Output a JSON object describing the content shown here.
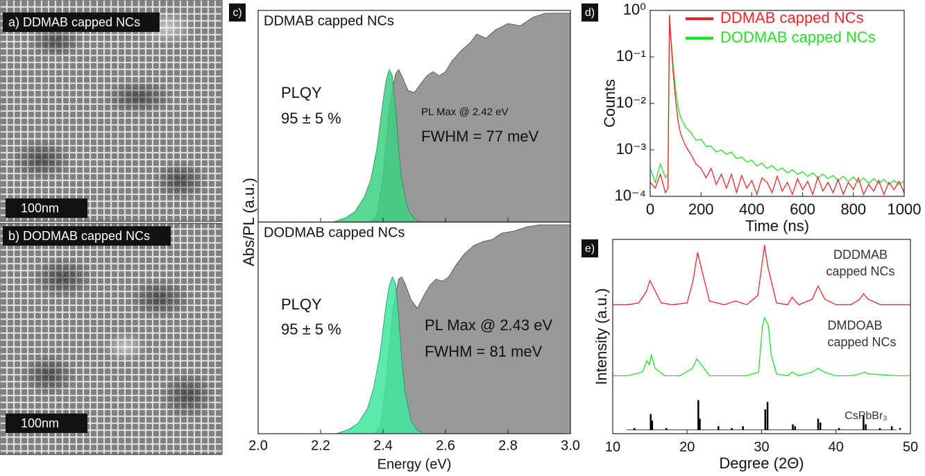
{
  "images": [
    {
      "caption": "a) DDMAB capped NCs",
      "scale_bar": "100nm"
    },
    {
      "caption": "b) DODMAB capped NCs",
      "scale_bar": "100nm"
    }
  ],
  "chart_data": [
    {
      "type": "area",
      "panel_label": "c)",
      "ylabel": "Abs/PL (a.u.)",
      "xlabel": "Energy (eV)",
      "xlim": [
        2.0,
        3.0
      ],
      "xticks": [
        {
          "value": 2,
          "label": "2.0"
        },
        2.2,
        2.4,
        2.6,
        2.8,
        {
          "value": 3,
          "label": "3.0"
        }
      ],
      "subplots": [
        {
          "title": "DDMAB capped NCs",
          "annotations": [
            "PLQY",
            "95 ± 5 %",
            "PL Max @ 2.42 eV",
            "FWHM = 77 meV"
          ],
          "ylim": [
            0,
            1
          ],
          "series": [
            {
              "color": "#999999",
              "x": [
                2.36,
                2.38,
                2.4,
                2.42,
                2.44,
                2.45,
                2.46,
                2.48,
                2.5,
                2.52,
                2.54,
                2.56,
                2.58,
                2.6,
                2.62,
                2.65,
                2.68,
                2.7,
                2.73,
                2.76,
                2.8,
                2.84,
                2.88,
                2.92,
                2.96,
                3.0
              ],
              "values": [
                0,
                0.03,
                0.22,
                0.55,
                0.71,
                0.73,
                0.7,
                0.63,
                0.62,
                0.66,
                0.7,
                0.72,
                0.7,
                0.72,
                0.77,
                0.82,
                0.86,
                0.9,
                0.88,
                0.92,
                0.95,
                0.94,
                0.98,
                1.0,
                1.0,
                1.0
              ]
            },
            {
              "color": "#3fcf80",
              "x": [
                2.24,
                2.28,
                2.31,
                2.34,
                2.36,
                2.38,
                2.4,
                2.41,
                2.42,
                2.43,
                2.44,
                2.45,
                2.46,
                2.48,
                2.5,
                2.52
              ],
              "values": [
                0,
                0.02,
                0.05,
                0.12,
                0.2,
                0.35,
                0.58,
                0.68,
                0.73,
                0.7,
                0.55,
                0.35,
                0.2,
                0.06,
                0.015,
                0
              ]
            }
          ]
        },
        {
          "title": "DODMAB capped NCs",
          "annotations": [
            "PLQY",
            "95 ± 5 %",
            "PL Max @ 2.43 eV",
            "FWHM = 81 meV"
          ],
          "ylim": [
            0,
            1
          ],
          "series": [
            {
              "color": "#999999",
              "x": [
                2.37,
                2.39,
                2.41,
                2.43,
                2.45,
                2.46,
                2.47,
                2.49,
                2.51,
                2.53,
                2.55,
                2.57,
                2.59,
                2.61,
                2.63,
                2.66,
                2.69,
                2.72,
                2.75,
                2.78,
                2.82,
                2.86,
                2.9,
                2.94,
                2.98,
                3.0
              ],
              "values": [
                0,
                0.03,
                0.25,
                0.58,
                0.74,
                0.75,
                0.72,
                0.64,
                0.6,
                0.66,
                0.71,
                0.74,
                0.73,
                0.75,
                0.8,
                0.86,
                0.9,
                0.92,
                0.93,
                0.96,
                0.97,
                0.99,
                1.0,
                1.0,
                1.0,
                1.0
              ]
            },
            {
              "color": "#40e8a0",
              "x": [
                2.25,
                2.29,
                2.32,
                2.35,
                2.37,
                2.39,
                2.41,
                2.42,
                2.43,
                2.44,
                2.45,
                2.46,
                2.47,
                2.49,
                2.51,
                2.53
              ],
              "values": [
                0,
                0.02,
                0.05,
                0.12,
                0.22,
                0.38,
                0.62,
                0.71,
                0.75,
                0.72,
                0.56,
                0.35,
                0.2,
                0.06,
                0.015,
                0
              ]
            }
          ]
        }
      ]
    },
    {
      "type": "line",
      "panel_label": "d)",
      "xlabel": "Time (ns)",
      "ylabel": "Counts",
      "log_y": true,
      "legend": "upper right",
      "xlim": [
        0,
        1000
      ],
      "xticks": [
        0,
        200,
        400,
        600,
        800,
        1000
      ],
      "ylim": [
        0.0001,
        1
      ],
      "yticks": [
        {
          "value": 1,
          "label": "10⁰"
        },
        {
          "value": 0.1,
          "label": "10⁻¹"
        },
        {
          "value": 0.01,
          "label": "10⁻²"
        },
        {
          "value": 0.001,
          "label": "10⁻³"
        },
        {
          "value": 0.0001,
          "label": "10⁻⁴"
        }
      ],
      "x": [
        0,
        20,
        40,
        60,
        70,
        76,
        80,
        90,
        100,
        110,
        120,
        140,
        160,
        180,
        200,
        220,
        240,
        260,
        280,
        300,
        320,
        340,
        360,
        380,
        400,
        420,
        440,
        460,
        480,
        500,
        520,
        540,
        560,
        580,
        600,
        620,
        640,
        660,
        680,
        700,
        720,
        740,
        760,
        780,
        800,
        820,
        840,
        860,
        880,
        900,
        920,
        940,
        960,
        980,
        1000
      ],
      "series": [
        {
          "name": "DDMAB capped NCs",
          "color": "#e8262c",
          "values": [
            0.0002,
            0.00015,
            0.0003,
            0.00012,
            0.00015,
            0.8,
            0.3,
            0.05,
            0.012,
            0.004,
            0.0022,
            0.0012,
            0.0008,
            0.0005,
            0.0004,
            0.00025,
            0.0004,
            0.00018,
            0.0003,
            0.00015,
            0.0003,
            0.00012,
            0.00028,
            0.00015,
            0.00022,
            0.00011,
            0.00025,
            0.0002,
            0.00012,
            0.00027,
            0.00013,
            0.0002,
            0.00011,
            0.00024,
            0.00014,
            0.00021,
            0.00011,
            0.00026,
            0.00013,
            0.0002,
            0.00012,
            0.00023,
            0.00011,
            0.0002,
            0.00014,
            0.00025,
            0.00011,
            0.00018,
            0.00013,
            0.00022,
            0.00011,
            0.0002,
            0.00014,
            0.00021,
            0.00012
          ]
        },
        {
          "name": "DODMAB capped NCs",
          "color": "#22e022",
          "values": [
            0.0004,
            0.0002,
            0.0005,
            0.00025,
            0.0003,
            0.8,
            0.35,
            0.07,
            0.02,
            0.008,
            0.005,
            0.003,
            0.0024,
            0.0016,
            0.0017,
            0.0012,
            0.0012,
            0.0009,
            0.001,
            0.0008,
            0.0009,
            0.00065,
            0.0007,
            0.00055,
            0.0006,
            0.00045,
            0.00052,
            0.0004,
            0.00046,
            0.00036,
            0.00041,
            0.00032,
            0.00037,
            0.0003,
            0.00034,
            0.00027,
            0.00032,
            0.00025,
            0.0003,
            0.00024,
            0.00028,
            0.00022,
            0.00027,
            0.00021,
            0.00026,
            0.0002,
            0.00025,
            0.00019,
            0.00024,
            0.00019,
            0.00023,
            0.00018,
            0.00022,
            0.00018,
            0.00021
          ]
        }
      ]
    },
    {
      "type": "line",
      "panel_label": "e)",
      "xlabel": "Degree (2Θ)",
      "ylabel": "Intensity (a.u.)",
      "xlim": [
        10,
        50
      ],
      "xticks": [
        10,
        20,
        30,
        40,
        50
      ],
      "ylim": [
        -0.02,
        1.02
      ],
      "annotations": [
        "DDDMAB",
        "capped NCs",
        "DMDOAB",
        "capped NCs",
        "CsPbBr₃"
      ],
      "series": [
        {
          "color": "#e8262c",
          "x": [
            10,
            12,
            13.5,
            14.5,
            15,
            15.5,
            16.5,
            18,
            20,
            20.8,
            21.4,
            22,
            23,
            25,
            26.5,
            28,
            29.5,
            30.1,
            30.4,
            30.8,
            32,
            33.5,
            34.1,
            35,
            36.8,
            37.6,
            38.5,
            40,
            42,
            43.2,
            43.7,
            44.3,
            46,
            48,
            50
          ],
          "values": [
            0.67,
            0.67,
            0.68,
            0.74,
            0.8,
            0.76,
            0.68,
            0.67,
            0.68,
            0.8,
            0.95,
            0.85,
            0.69,
            0.67,
            0.69,
            0.67,
            0.72,
            0.9,
            0.99,
            0.88,
            0.68,
            0.67,
            0.71,
            0.67,
            0.7,
            0.77,
            0.7,
            0.67,
            0.67,
            0.7,
            0.73,
            0.7,
            0.67,
            0.67,
            0.67
          ]
        },
        {
          "color": "#22e022",
          "x": [
            10,
            12,
            14,
            14.6,
            14.9,
            15.2,
            15.7,
            17,
            19,
            20.7,
            21.3,
            21.9,
            23,
            26,
            28,
            29.6,
            30.1,
            30.4,
            30.9,
            31.3,
            32,
            33.5,
            34.1,
            35,
            36.8,
            37.6,
            38.4,
            40,
            42,
            43.3,
            43.8,
            44.4,
            46.3,
            48,
            50
          ],
          "values": [
            0.29,
            0.29,
            0.31,
            0.37,
            0.35,
            0.4,
            0.33,
            0.29,
            0.29,
            0.33,
            0.38,
            0.35,
            0.29,
            0.29,
            0.29,
            0.31,
            0.55,
            0.6,
            0.56,
            0.4,
            0.3,
            0.29,
            0.31,
            0.29,
            0.31,
            0.33,
            0.31,
            0.29,
            0.29,
            0.3,
            0.31,
            0.3,
            0.295,
            0.29,
            0.29
          ]
        },
        {
          "color": "#000000",
          "style": "stick",
          "x": [
            12.9,
            15.1,
            15.3,
            17.2,
            21.5,
            21.7,
            24.2,
            26,
            27.5,
            30.5,
            30.8,
            34.2,
            34.5,
            37.6,
            37.9,
            40.4,
            43.7,
            44,
            45.9,
            47.5,
            48.6
          ],
          "values": [
            0.01,
            0.085,
            0.05,
            0.01,
            0.16,
            0.06,
            0.02,
            0.01,
            0.02,
            0.11,
            0.15,
            0.03,
            0.02,
            0.06,
            0.04,
            0.01,
            0.08,
            0.03,
            0.01,
            0.02,
            0.01
          ]
        }
      ]
    }
  ]
}
